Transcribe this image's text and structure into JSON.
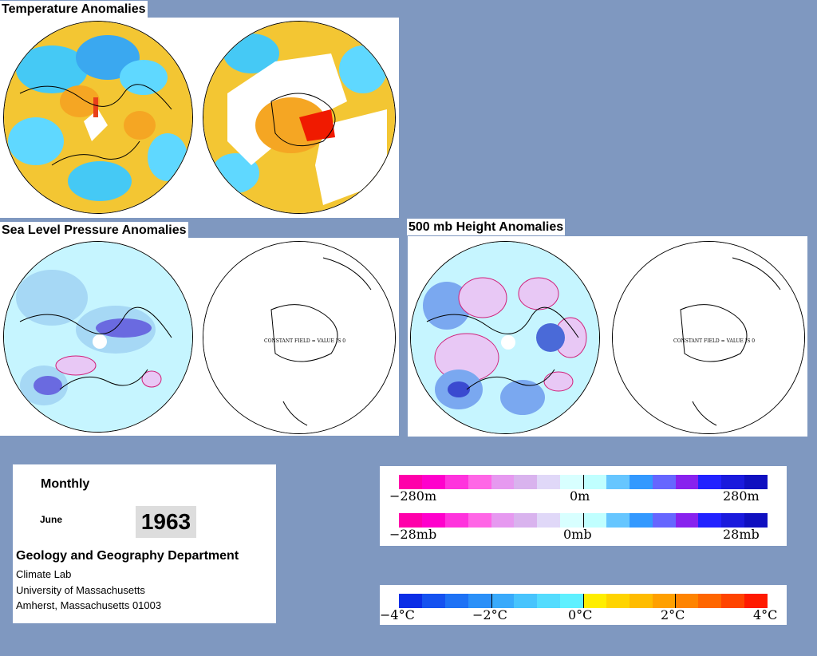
{
  "titles": {
    "temperature": "Temperature Anomalies",
    "slp": "Sea Level Pressure Anomalies",
    "height": "500 mb Height Anomalies"
  },
  "constant_field_text": "CONSTANT FIELD = VALUE IS 0",
  "info": {
    "period": "Monthly",
    "month": "June",
    "year": "1963",
    "department": "Geology and Geography Department",
    "lab": "Climate Lab",
    "university": "University of Massachusetts",
    "address": "Amherst, Massachusetts 01003"
  },
  "legend_height": {
    "labels": [
      "−280m",
      "0m",
      "280m"
    ],
    "colors": [
      "#ff00aa",
      "#ff00cc",
      "#ff33dd",
      "#ff66e6",
      "#e699f0",
      "#d9b3ee",
      "#e0d8f8",
      "#d8ffff",
      "#c0ffff",
      "#66c6ff",
      "#3399ff",
      "#6666ff",
      "#8822ee",
      "#2222ff",
      "#1a1add",
      "#1010c0"
    ]
  },
  "legend_pressure": {
    "labels": [
      "−28mb",
      "0mb",
      "28mb"
    ],
    "colors": [
      "#ff00aa",
      "#ff00cc",
      "#ff33dd",
      "#ff66e6",
      "#e699f0",
      "#d9b3ee",
      "#e0d8f8",
      "#d8ffff",
      "#c0ffff",
      "#66c6ff",
      "#3399ff",
      "#6666ff",
      "#8822ee",
      "#2222ff",
      "#1a1add",
      "#1010c0"
    ]
  },
  "legend_temperature": {
    "labels": [
      "−4°C",
      "−2°C",
      "0°C",
      "2°C",
      "4°C"
    ],
    "colors": [
      "#0b2ee6",
      "#1552f0",
      "#1e72f5",
      "#2b90f8",
      "#39aafb",
      "#48c4fd",
      "#54dcfe",
      "#5ff0ff",
      "#ffee00",
      "#ffd400",
      "#ffbc00",
      "#ffa000",
      "#ff8400",
      "#ff6600",
      "#ff4400",
      "#ff1a00"
    ]
  }
}
